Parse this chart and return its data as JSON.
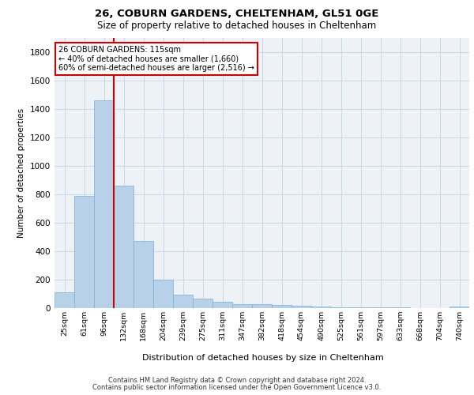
{
  "title_line1": "26, COBURN GARDENS, CHELTENHAM, GL51 0GE",
  "title_line2": "Size of property relative to detached houses in Cheltenham",
  "xlabel": "Distribution of detached houses by size in Cheltenham",
  "ylabel": "Number of detached properties",
  "categories": [
    "25sqm",
    "61sqm",
    "96sqm",
    "132sqm",
    "168sqm",
    "204sqm",
    "239sqm",
    "275sqm",
    "311sqm",
    "347sqm",
    "382sqm",
    "418sqm",
    "454sqm",
    "490sqm",
    "525sqm",
    "561sqm",
    "597sqm",
    "633sqm",
    "668sqm",
    "704sqm",
    "740sqm"
  ],
  "values": [
    110,
    790,
    1460,
    860,
    470,
    200,
    95,
    65,
    45,
    30,
    25,
    20,
    18,
    12,
    8,
    5,
    4,
    3,
    2,
    1,
    10
  ],
  "bar_color": "#b8d0e8",
  "bar_edgecolor": "#7aafd4",
  "vline_color": "#cc0000",
  "annotation_text": "26 COBURN GARDENS: 115sqm\n← 40% of detached houses are smaller (1,660)\n60% of semi-detached houses are larger (2,516) →",
  "annotation_box_color": "#ffffff",
  "annotation_box_edgecolor": "#cc0000",
  "ylim": [
    0,
    1900
  ],
  "yticks": [
    0,
    200,
    400,
    600,
    800,
    1000,
    1200,
    1400,
    1600,
    1800
  ],
  "grid_color": "#c8d8e8",
  "footer_line1": "Contains HM Land Registry data © Crown copyright and database right 2024.",
  "footer_line2": "Contains public sector information licensed under the Open Government Licence v3.0.",
  "bg_color": "#eef2f7"
}
